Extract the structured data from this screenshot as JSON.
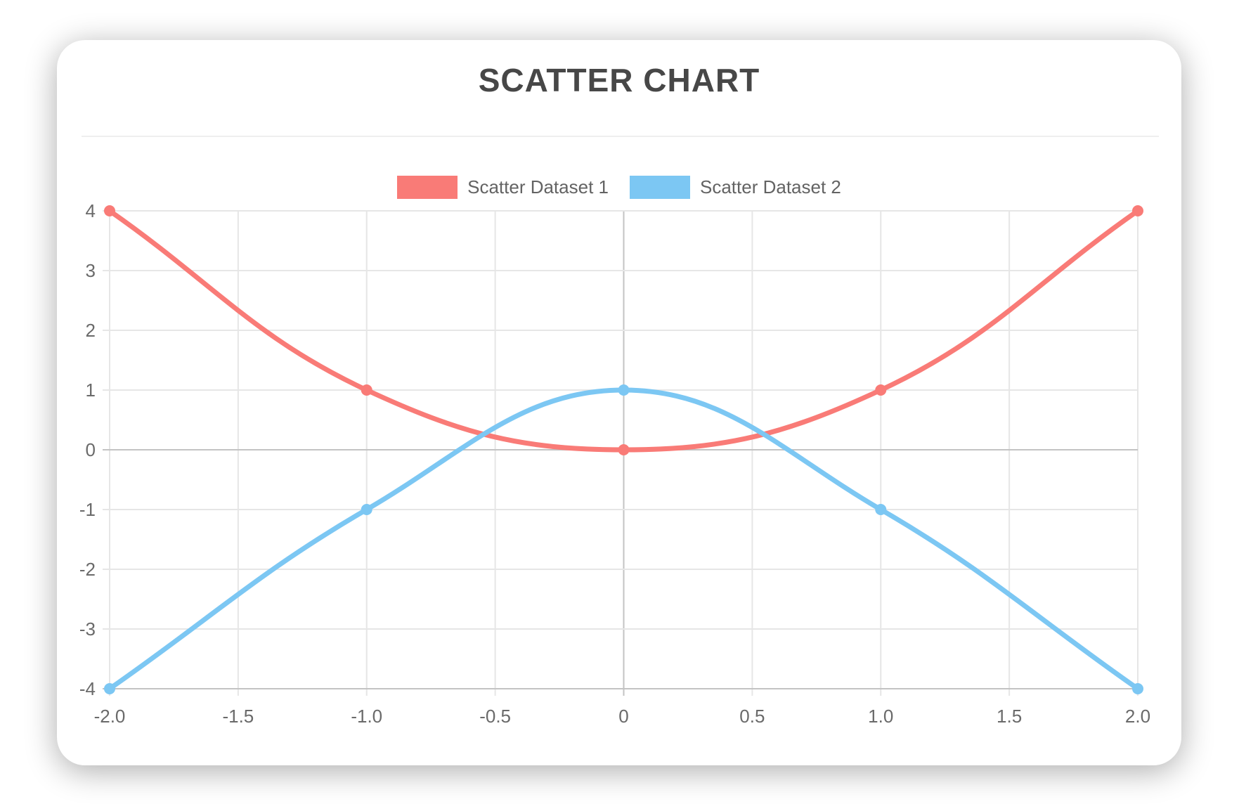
{
  "card": {
    "title": "SCATTER CHART"
  },
  "chart_data": {
    "type": "scatter",
    "title": "SCATTER CHART",
    "subtitle": "",
    "xlabel": "",
    "ylabel": "",
    "xlim": [
      -2.0,
      2.0
    ],
    "ylim": [
      -4,
      4
    ],
    "grid": true,
    "legend_position": "top-center",
    "line_style": "smooth-bezier",
    "point_radius": 8,
    "line_width": 7,
    "x_ticks": [
      "-2.0",
      "-1.5",
      "-1.0",
      "-0.5",
      "0",
      "0.5",
      "1.0",
      "1.5",
      "2.0"
    ],
    "y_ticks": [
      "4",
      "3",
      "2",
      "1",
      "0",
      "-1",
      "-2",
      "-3",
      "-4"
    ],
    "series": [
      {
        "name": "Scatter Dataset 1",
        "color": "#f97b77",
        "points": [
          {
            "x": -2,
            "y": 4
          },
          {
            "x": -1,
            "y": 1
          },
          {
            "x": 0,
            "y": 0
          },
          {
            "x": 1,
            "y": 1
          },
          {
            "x": 2,
            "y": 4
          }
        ]
      },
      {
        "name": "Scatter Dataset 2",
        "color": "#7cc7f3",
        "points": [
          {
            "x": -2,
            "y": -4
          },
          {
            "x": -1,
            "y": -1
          },
          {
            "x": 0,
            "y": 1
          },
          {
            "x": 1,
            "y": -1
          },
          {
            "x": 2,
            "y": -4
          }
        ]
      }
    ]
  },
  "colors": {
    "title": "#474747",
    "tick_label": "#6a6a6a",
    "legend_label": "#636363",
    "grid_line": "#e6e6e6",
    "zero_line": "#c3c3c3",
    "divider": "#efefef",
    "card_background": "#ffffff"
  }
}
